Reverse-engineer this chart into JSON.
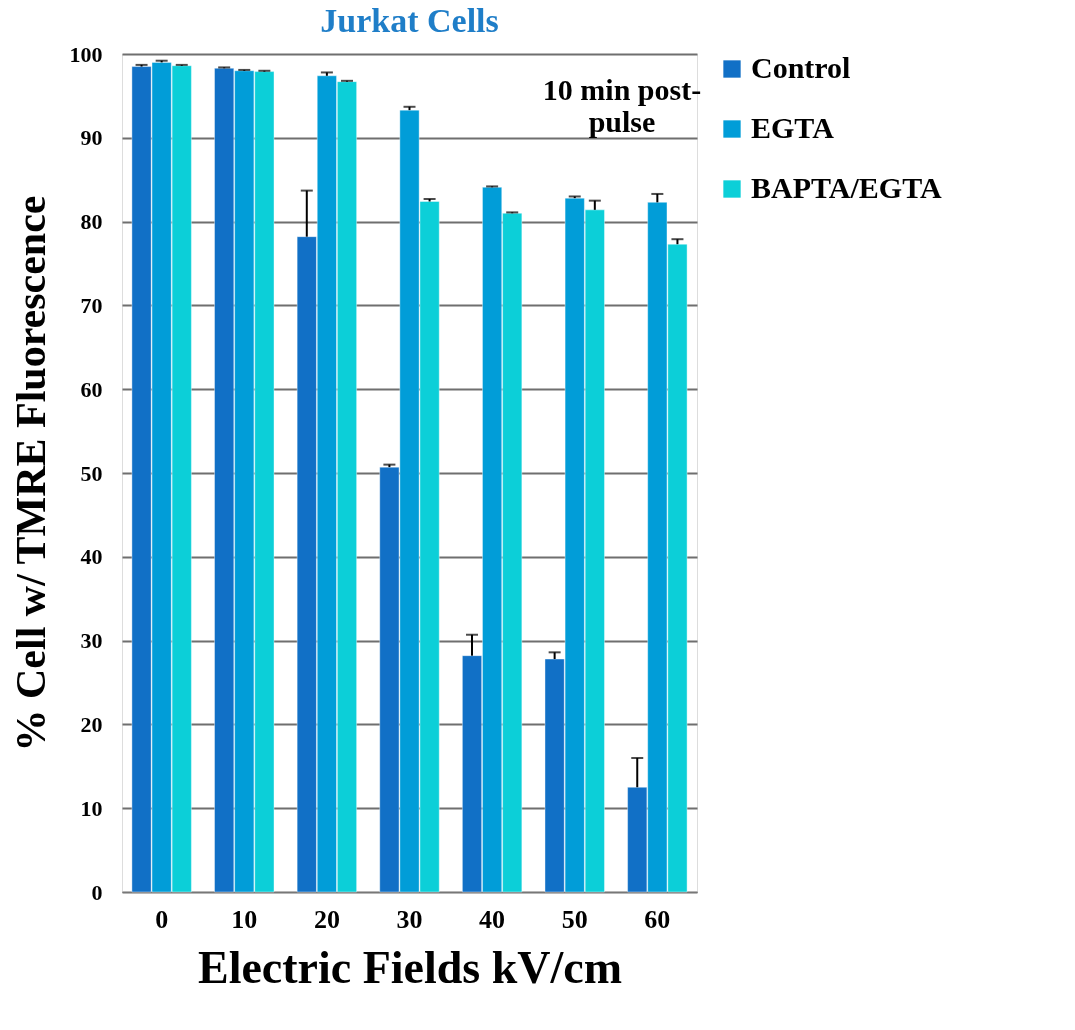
{
  "chart_data": {
    "type": "bar",
    "title": "Jurkat Cells",
    "xlabel": "Electric Fields kV/cm",
    "ylabel": "% Cell w/ TMRE Fluorescence",
    "categories": [
      "0",
      "10",
      "20",
      "30",
      "40",
      "50",
      "60"
    ],
    "series": [
      {
        "name": "Control",
        "color": "#1170c6",
        "values": [
          98.5,
          98.3,
          78.2,
          50.7,
          28.2,
          27.8,
          12.5
        ],
        "errors": [
          [
            98.5,
            98.7
          ],
          [
            98.3,
            98.4
          ],
          [
            78.2,
            83.7
          ],
          [
            50.7,
            51.0
          ],
          [
            28.2,
            30.7
          ],
          [
            27.8,
            28.6
          ],
          [
            12.5,
            16.0
          ]
        ]
      },
      {
        "name": "EGTA",
        "color": "#019dd8",
        "values": [
          99.0,
          98.0,
          97.4,
          93.3,
          84.1,
          82.8,
          82.3
        ],
        "errors": [
          [
            99.0,
            99.2
          ],
          [
            98.0,
            98.1
          ],
          [
            97.4,
            97.8
          ],
          [
            93.3,
            93.7
          ],
          [
            84.1,
            84.2
          ],
          [
            82.8,
            83.0
          ],
          [
            82.3,
            83.3
          ]
        ]
      },
      {
        "name": "BAPTA/EGTA",
        "color": "#0ccfd8",
        "values": [
          98.6,
          97.9,
          96.7,
          82.4,
          81.0,
          81.4,
          77.3
        ],
        "errors": [
          [
            98.6,
            98.7
          ],
          [
            97.9,
            98.0
          ],
          [
            96.7,
            96.8
          ],
          [
            82.4,
            82.7
          ],
          [
            81.0,
            81.1
          ],
          [
            81.4,
            82.5
          ],
          [
            77.3,
            77.9
          ]
        ]
      }
    ],
    "ylim": [
      0,
      100
    ],
    "yticks": [
      0,
      10,
      20,
      30,
      40,
      50,
      60,
      70,
      80,
      90,
      100
    ],
    "grid": "y",
    "legend": "right",
    "annotations": [
      "10 min post-\npulse"
    ]
  }
}
